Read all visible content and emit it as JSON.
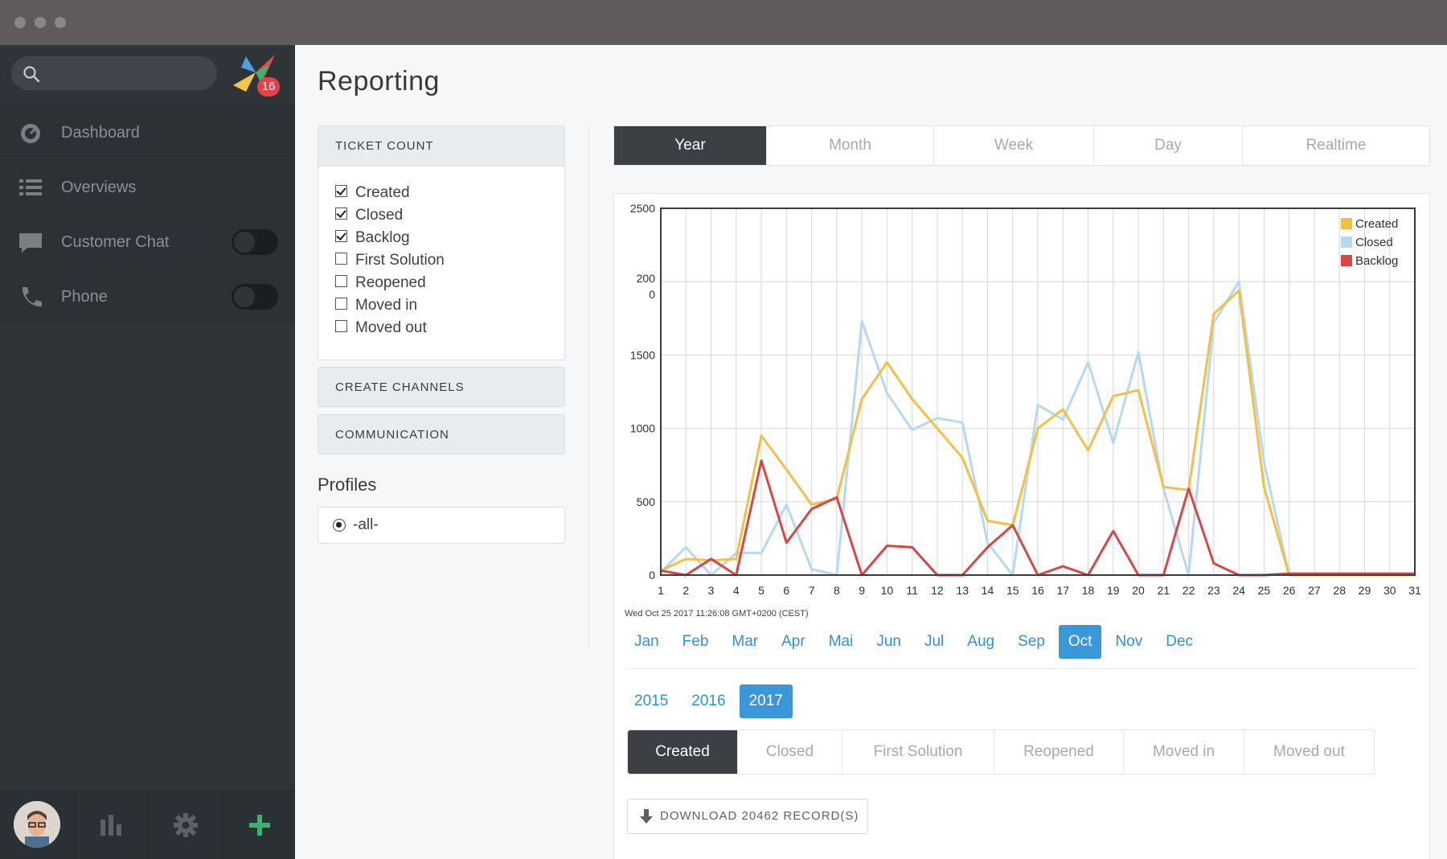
{
  "sidebar": {
    "badge_count": "16",
    "items": [
      {
        "label": "Dashboard",
        "icon": "dashboard-icon"
      },
      {
        "label": "Overviews",
        "icon": "list-icon"
      },
      {
        "label": "Customer Chat",
        "icon": "chat-icon",
        "toggle": false
      },
      {
        "label": "Phone",
        "icon": "phone-icon",
        "toggle": false
      }
    ],
    "bottom": [
      "avatar",
      "stats-icon",
      "gear-icon",
      "plus-icon"
    ]
  },
  "page": {
    "title": "Reporting"
  },
  "left_panel": {
    "ticket_count_title": "TICKET COUNT",
    "checkboxes": [
      {
        "label": "Created",
        "checked": true
      },
      {
        "label": "Closed",
        "checked": true
      },
      {
        "label": "Backlog",
        "checked": true
      },
      {
        "label": "First Solution",
        "checked": false
      },
      {
        "label": "Reopened",
        "checked": false
      },
      {
        "label": "Moved in",
        "checked": false
      },
      {
        "label": "Moved out",
        "checked": false
      }
    ],
    "create_channels": "CREATE CHANNELS",
    "communication": "COMMUNICATION",
    "profiles_title": "Profiles",
    "profile_selected": "-all-"
  },
  "period_tabs": [
    "Year",
    "Month",
    "Week",
    "Day",
    "Realtime"
  ],
  "period_active": "Year",
  "timestamp": "Wed Oct 25 2017 11:26:08 GMT+0200 (CEST)",
  "months": [
    "Jan",
    "Feb",
    "Mar",
    "Apr",
    "Mai",
    "Jun",
    "Jul",
    "Aug",
    "Sep",
    "Oct",
    "Nov",
    "Dec"
  ],
  "month_active": "Oct",
  "years": [
    "2015",
    "2016",
    "2017"
  ],
  "year_active": "2017",
  "metric_tabs": [
    "Created",
    "Closed",
    "First Solution",
    "Reopened",
    "Moved in",
    "Moved out"
  ],
  "metric_active": "Created",
  "download_label": "DOWNLOAD 20462 RECORD(S)",
  "colors": {
    "created": "#f1c048",
    "closed": "#b6d9f1",
    "backlog": "#d64848",
    "accent": "#3a98d8"
  },
  "chart_data": {
    "type": "line",
    "x": [
      1,
      2,
      3,
      4,
      5,
      6,
      7,
      8,
      9,
      10,
      11,
      12,
      13,
      14,
      15,
      16,
      17,
      18,
      19,
      20,
      21,
      22,
      23,
      24,
      25,
      26,
      27,
      28,
      29,
      30,
      31
    ],
    "x_tick_labels": [
      "1",
      "2",
      "3",
      "4",
      "5",
      "6",
      "7",
      "8",
      "9",
      "10",
      "11",
      "12",
      "13",
      "14",
      "15",
      "16",
      "17",
      "18",
      "19",
      "20",
      "21",
      "22",
      "23",
      "24",
      "25",
      "26",
      "27",
      "28",
      "29",
      "30",
      "31"
    ],
    "y_tick_labels": [
      "0",
      "500",
      "1000",
      "1500",
      "200\n0",
      "2500"
    ],
    "ylim": [
      0,
      2500
    ],
    "grid": true,
    "legend_position": "top-right",
    "series": [
      {
        "name": "Created",
        "values": [
          30,
          110,
          100,
          110,
          950,
          720,
          480,
          520,
          1200,
          1450,
          1200,
          1000,
          800,
          370,
          340,
          1000,
          1130,
          850,
          1220,
          1260,
          600,
          580,
          1780,
          1940,
          600,
          0,
          0,
          0,
          0,
          0,
          0
        ]
      },
      {
        "name": "Closed",
        "values": [
          20,
          190,
          0,
          150,
          150,
          480,
          40,
          0,
          1730,
          1240,
          990,
          1070,
          1040,
          220,
          0,
          1160,
          1060,
          1450,
          900,
          1520,
          590,
          0,
          1720,
          2000,
          770,
          0,
          0,
          0,
          0,
          0,
          0
        ]
      },
      {
        "name": "Backlog",
        "values": [
          30,
          0,
          110,
          0,
          780,
          220,
          450,
          530,
          0,
          200,
          190,
          0,
          0,
          190,
          340,
          0,
          60,
          0,
          300,
          0,
          0,
          590,
          80,
          0,
          0,
          10,
          10,
          10,
          10,
          10,
          10
        ]
      }
    ]
  }
}
